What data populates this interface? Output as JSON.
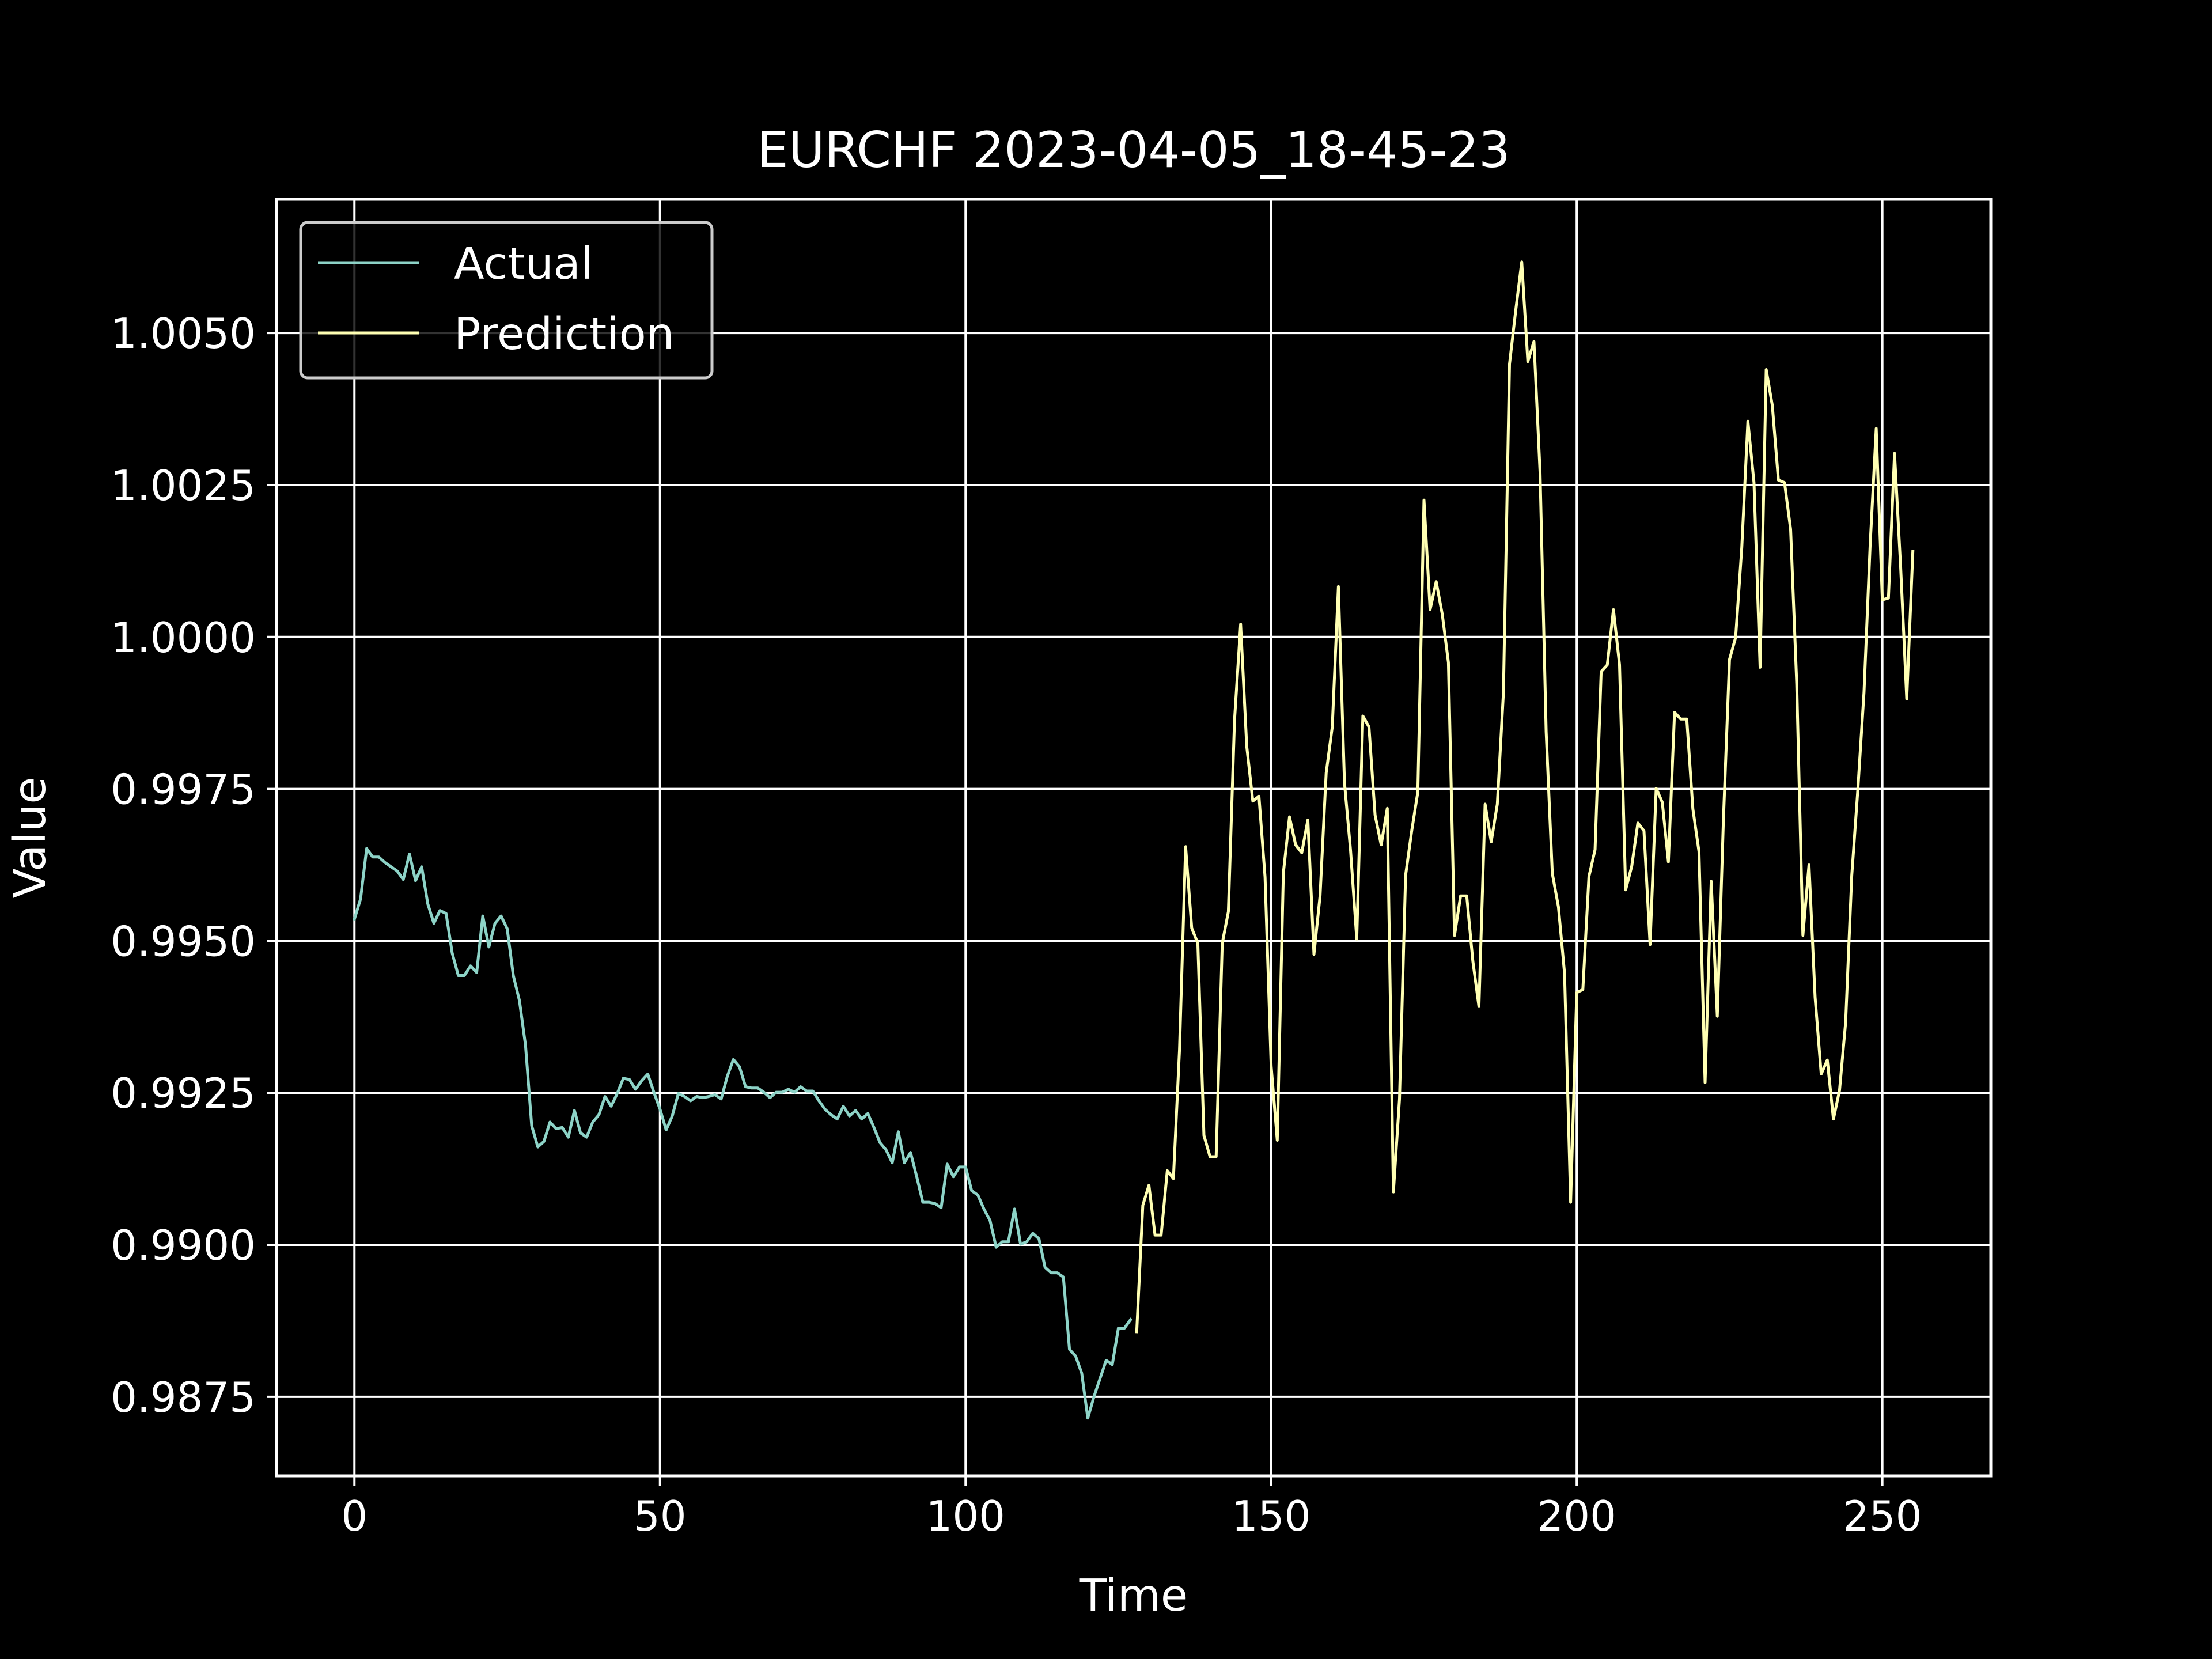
{
  "chart_data": {
    "type": "line",
    "title": "EURCHF 2023-04-05_18-45-23",
    "xlabel": "Time",
    "ylabel": "Value",
    "xlim": [
      -12.75,
      267.75
    ],
    "ylim": [
      0.9862,
      1.0072
    ],
    "x_ticks": [
      0,
      50,
      100,
      150,
      200,
      250
    ],
    "x_tick_labels": [
      "0",
      "50",
      "100",
      "150",
      "200",
      "250"
    ],
    "y_ticks": [
      0.9875,
      0.99,
      0.9925,
      0.995,
      0.9975,
      1.0,
      1.0025,
      1.005
    ],
    "y_tick_labels": [
      "0.9875",
      "0.9900",
      "0.9925",
      "0.9950",
      "0.9975",
      "1.0000",
      "1.0025",
      "1.0050"
    ],
    "grid": true,
    "legend_position": "top-left",
    "background": "#000000",
    "foreground": "#ffffff",
    "series": [
      {
        "name": "Actual",
        "color": "#8dd3c7",
        "x_start": 0,
        "values": [
          0.99536,
          0.99569,
          0.99652,
          0.99638,
          0.99638,
          0.99629,
          0.99622,
          0.99615,
          0.99601,
          0.99643,
          0.99599,
          0.99622,
          0.99561,
          0.99529,
          0.9955,
          0.99545,
          0.9948,
          0.99443,
          0.99443,
          0.99459,
          0.99448,
          0.99541,
          0.9949,
          0.99529,
          0.99541,
          0.9952,
          0.99443,
          0.99402,
          0.99328,
          0.99196,
          0.99161,
          0.9917,
          0.99202,
          0.99191,
          0.99193,
          0.99177,
          0.99221,
          0.99184,
          0.99177,
          0.99202,
          0.99214,
          0.99244,
          0.99228,
          0.99249,
          0.99274,
          0.99272,
          0.99256,
          0.9927,
          0.99281,
          0.99251,
          0.99223,
          0.99189,
          0.99212,
          0.99249,
          0.99244,
          0.99237,
          0.99244,
          0.99242,
          0.99244,
          0.99247,
          0.9924,
          0.99277,
          0.99305,
          0.99293,
          0.9926,
          0.99258,
          0.99258,
          0.99251,
          0.99242,
          0.99251,
          0.99251,
          0.99256,
          0.99251,
          0.9926,
          0.99253,
          0.99253,
          0.99237,
          0.99223,
          0.99214,
          0.99207,
          0.99228,
          0.99212,
          0.99221,
          0.99207,
          0.99216,
          0.99193,
          0.99168,
          0.99156,
          0.99135,
          0.99186,
          0.99135,
          0.99152,
          0.99112,
          0.9907,
          0.9907,
          0.99068,
          0.99061,
          0.99133,
          0.99112,
          0.99128,
          0.99128,
          0.99089,
          0.99082,
          0.99059,
          0.9904,
          0.98996,
          0.99005,
          0.99005,
          0.99059,
          0.99001,
          0.99005,
          0.99019,
          0.9901,
          0.98963,
          0.98954,
          0.98954,
          0.98947,
          0.98828,
          0.98817,
          0.98789,
          0.98715,
          0.9875,
          0.9878,
          0.9881,
          0.98803,
          0.98863,
          0.98863,
          0.98877
        ]
      },
      {
        "name": "Prediction",
        "color": "#ffffb3",
        "x_start": 128,
        "values": [
          0.98857,
          0.99065,
          0.99098,
          0.99016,
          0.99016,
          0.99122,
          0.99109,
          0.99321,
          0.99655,
          0.99521,
          0.99496,
          0.9918,
          0.99145,
          0.99145,
          0.99496,
          0.99548,
          0.99863,
          1.00021,
          0.9982,
          0.9973,
          0.99738,
          0.99605,
          0.99294,
          0.99172,
          0.99612,
          0.99704,
          0.99658,
          0.99645,
          0.99699,
          0.99478,
          0.99574,
          0.99776,
          0.99852,
          1.00083,
          0.9976,
          0.99648,
          0.99503,
          0.9987,
          0.99852,
          0.99707,
          0.99658,
          0.99718,
          0.99087,
          0.9924,
          0.99608,
          0.99681,
          0.99745,
          1.00225,
          1.00045,
          1.00091,
          1.00037,
          0.99958,
          0.99509,
          0.99574,
          0.99574,
          0.99467,
          0.99392,
          0.99725,
          0.99663,
          0.99725,
          0.99908,
          1.00449,
          1.00536,
          1.00617,
          1.00453,
          1.00486,
          1.00271,
          0.99844,
          0.99611,
          0.99556,
          0.99447,
          0.9907,
          0.99415,
          0.9942,
          0.99606,
          0.9965,
          0.99943,
          0.99954,
          1.00045,
          0.99954,
          0.99584,
          0.99623,
          0.99694,
          0.99681,
          0.99494,
          0.99751,
          0.99728,
          0.9963,
          0.99876,
          0.99865,
          0.99865,
          0.99717,
          0.99647,
          0.99267,
          0.99598,
          0.99376,
          0.99699,
          0.99963,
          0.99999,
          1.00147,
          1.00355,
          1.00254,
          0.9995,
          1.0044,
          1.00381,
          1.00258,
          1.00254,
          1.00177,
          0.99923,
          0.99509,
          0.99625,
          0.99407,
          0.99281,
          0.99304,
          0.99207,
          0.99254,
          0.99366,
          0.99607,
          0.99749,
          0.99909,
          1.0015,
          1.00343,
          1.00061,
          1.00064,
          1.00302,
          1.00115,
          0.99898,
          1.00141
        ]
      }
    ]
  }
}
